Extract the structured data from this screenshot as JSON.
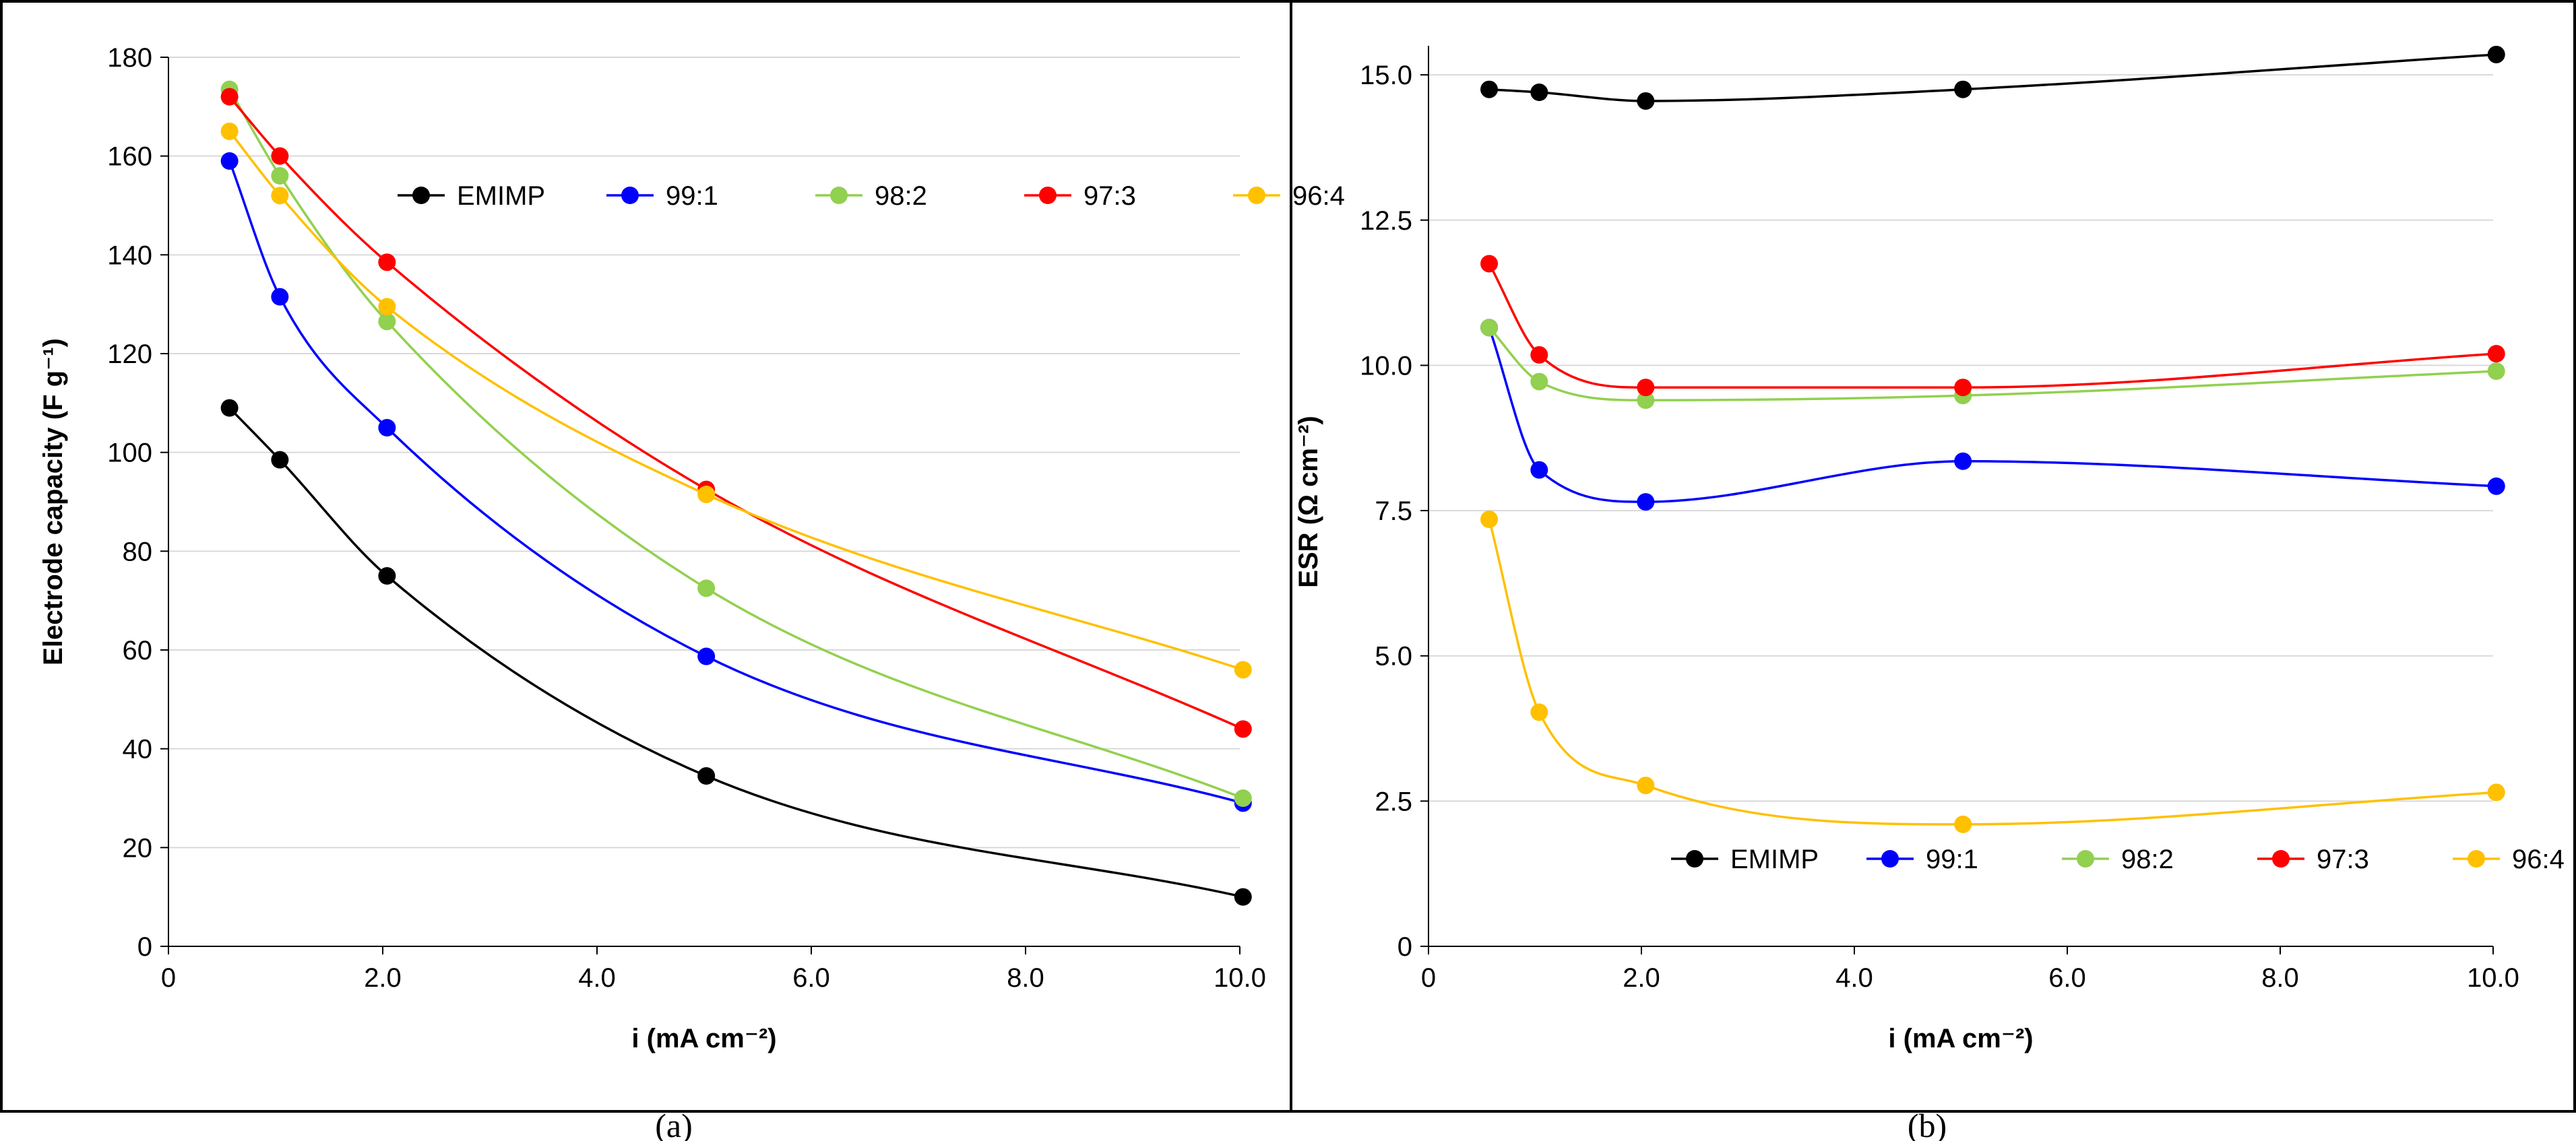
{
  "chart_data": [
    {
      "type": "line",
      "panel": "a",
      "caption": "(a)",
      "xlabel": "i (mA cm⁻²)",
      "ylabel": "Electrode capacity (F g⁻¹)",
      "xlim": [
        0,
        10
      ],
      "ylim": [
        0,
        180
      ],
      "xticks": [
        0,
        2,
        4,
        6,
        8,
        10
      ],
      "xtick_labels": [
        "0",
        "2.0",
        "4.0",
        "6.0",
        "8.0",
        "10.0"
      ],
      "yticks": [
        0,
        20,
        40,
        60,
        80,
        100,
        120,
        140,
        160,
        180
      ],
      "ytick_labels": [
        "0",
        "20",
        "40",
        "60",
        "80",
        "100",
        "120",
        "140",
        "160",
        "180"
      ],
      "legend_position": "top-right",
      "grid": "horizontal",
      "x": [
        0.57,
        1.04,
        2.04,
        5.02,
        10.03
      ],
      "series": [
        {
          "name": "EMIMP",
          "color": "#000000",
          "values": [
            109,
            98.5,
            75,
            34.5,
            10
          ]
        },
        {
          "name": "99:1",
          "color": "#0000ff",
          "values": [
            159,
            131.5,
            105,
            58.7,
            29
          ]
        },
        {
          "name": "98:2",
          "color": "#92d050",
          "values": [
            173.5,
            156,
            126.5,
            72.5,
            30
          ]
        },
        {
          "name": "97:3",
          "color": "#ff0000",
          "values": [
            172,
            160,
            138.5,
            92.5,
            44
          ]
        },
        {
          "name": "96:4",
          "color": "#ffc000",
          "values": [
            165,
            152,
            129.5,
            91.5,
            56
          ]
        }
      ]
    },
    {
      "type": "line",
      "panel": "b",
      "caption": "(b)",
      "xlabel": "i (mA cm⁻²)",
      "ylabel": "ESR (Ω cm⁻²)",
      "xlim": [
        0,
        10
      ],
      "ylim": [
        0,
        15.5
      ],
      "xticks": [
        0,
        2,
        4,
        6,
        8,
        10
      ],
      "xtick_labels": [
        "0",
        "2.0",
        "4.0",
        "6.0",
        "8.0",
        "10.0"
      ],
      "yticks": [
        0,
        2.5,
        5,
        7.5,
        10,
        12.5,
        15
      ],
      "ytick_labels": [
        "0",
        "2.5",
        "5.0",
        "7.5",
        "10.0",
        "12.5",
        "15.0"
      ],
      "legend_position": "bottom-right",
      "grid": "horizontal",
      "x": [
        0.57,
        1.04,
        2.04,
        5.02,
        10.03
      ],
      "series": [
        {
          "name": "EMIMP",
          "color": "#000000",
          "values": [
            14.75,
            14.7,
            14.55,
            14.75,
            15.35
          ]
        },
        {
          "name": "99:1",
          "color": "#0000ff",
          "values": [
            10.65,
            8.2,
            7.65,
            8.35,
            7.92
          ]
        },
        {
          "name": "98:2",
          "color": "#92d050",
          "values": [
            10.65,
            9.72,
            9.4,
            9.48,
            9.9
          ]
        },
        {
          "name": "97:3",
          "color": "#ff0000",
          "values": [
            11.75,
            10.18,
            9.62,
            9.62,
            10.2
          ]
        },
        {
          "name": "96:4",
          "color": "#ffc000",
          "values": [
            7.35,
            4.03,
            2.77,
            2.1,
            2.65
          ]
        }
      ]
    }
  ]
}
